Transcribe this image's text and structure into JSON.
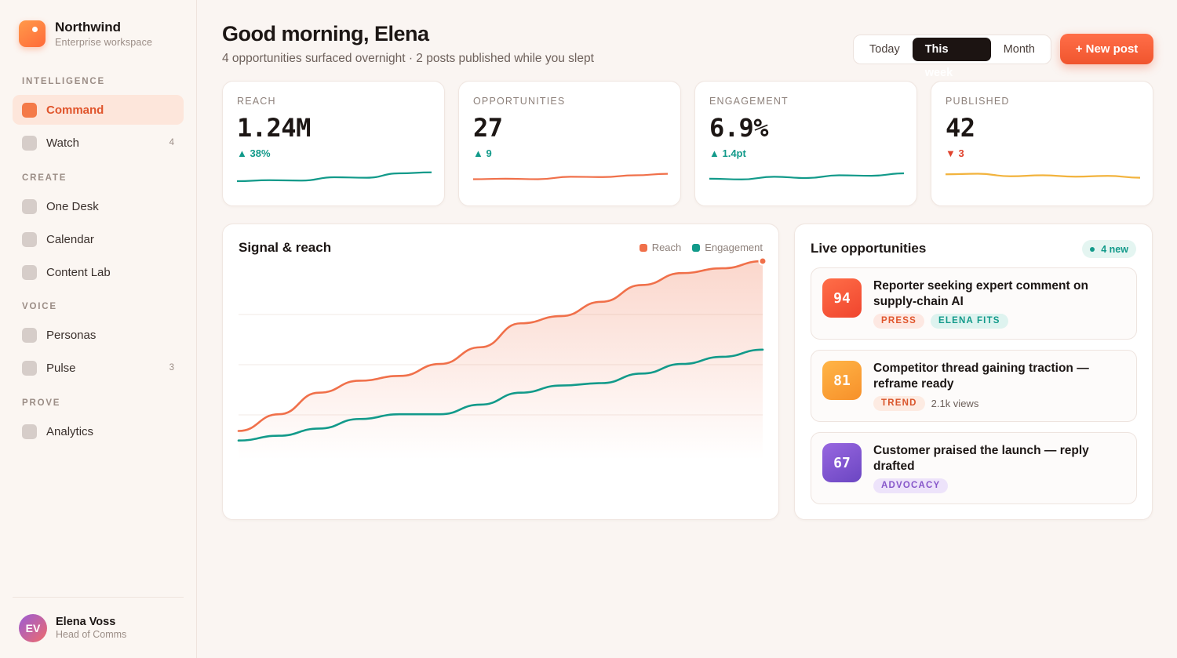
{
  "brand": {
    "name": "Northwind",
    "subtitle": "Enterprise workspace"
  },
  "sidebar": {
    "sections": [
      {
        "label": "INTELLIGENCE",
        "items": [
          {
            "label": "Command",
            "active": true
          },
          {
            "label": "Watch",
            "count": "4"
          }
        ]
      },
      {
        "label": "CREATE",
        "items": [
          {
            "label": "One Desk"
          },
          {
            "label": "Calendar"
          },
          {
            "label": "Content Lab"
          }
        ]
      },
      {
        "label": "VOICE",
        "items": [
          {
            "label": "Personas"
          },
          {
            "label": "Pulse",
            "count": "3"
          }
        ]
      },
      {
        "label": "PROVE",
        "items": [
          {
            "label": "Analytics"
          }
        ]
      }
    ]
  },
  "user": {
    "initials": "EV",
    "name": "Elena Voss",
    "role": "Head of Comms"
  },
  "header": {
    "title": "Good morning, Elena",
    "subtitle": "4 opportunities surfaced overnight · 2 posts published while you slept",
    "ranges": [
      "Today",
      "This week",
      "Month"
    ],
    "selected_range": "This week",
    "new_post_label": "+ New post"
  },
  "kpis": [
    {
      "label": "REACH",
      "value": "1.24M",
      "delta": "▲ 38%",
      "direction": "up",
      "color": "#129a8a",
      "trend": [
        4,
        5,
        4.6,
        8,
        7.5,
        12,
        13
      ]
    },
    {
      "label": "OPPORTUNITIES",
      "value": "27",
      "delta": "▲ 9",
      "direction": "up",
      "color": "#f0704a",
      "trend": [
        6,
        6.5,
        6,
        8.5,
        8.2,
        10,
        11.5
      ]
    },
    {
      "label": "ENGAGEMENT",
      "value": "6.9%",
      "delta": "▲ 1.4pt",
      "direction": "up",
      "color": "#129a8a",
      "trend": [
        6.5,
        5.8,
        8.5,
        7.2,
        10,
        9.5,
        12
      ]
    },
    {
      "label": "PUBLISHED",
      "value": "42",
      "delta": "▼ 3",
      "direction": "down",
      "color": "#f2b33d",
      "trend": [
        11,
        11.6,
        9,
        10,
        8.6,
        9.4,
        7.5
      ]
    }
  ],
  "signal_chart": {
    "title": "Signal & reach",
    "legend": [
      {
        "name": "Reach",
        "color": "#f0704a"
      },
      {
        "name": "Engagement",
        "color": "#129a8a"
      }
    ]
  },
  "chart_data": {
    "type": "area",
    "title": "Signal & reach",
    "ylim": [
      0,
      100
    ],
    "grid": true,
    "legend_position": "top-right",
    "series": [
      {
        "name": "Reach",
        "color": "#f0704a",
        "values": [
          30,
          37,
          46,
          51,
          53,
          58,
          65,
          75,
          78,
          84,
          91,
          96,
          98,
          101
        ]
      },
      {
        "name": "Engagement",
        "color": "#129a8a",
        "values": [
          26,
          28,
          31,
          35,
          37,
          37,
          41,
          46,
          49,
          50,
          54,
          58,
          61,
          64
        ]
      }
    ]
  },
  "opportunities": {
    "title": "Live opportunities",
    "badge": "4 new",
    "items": [
      {
        "score": "94",
        "color_from": "#ff6e48",
        "color_to": "#f0452e",
        "text": "Reporter seeking expert comment on supply-chain AI",
        "tags": [
          {
            "label": "PRESS",
            "kind": "press"
          },
          {
            "label": "ELENA FITS",
            "kind": "fits"
          }
        ],
        "note": ""
      },
      {
        "score": "81",
        "color_from": "#ffb547",
        "color_to": "#f7902a",
        "text": "Competitor thread gaining traction — reframe ready",
        "tags": [
          {
            "label": "TREND",
            "kind": "trend"
          }
        ],
        "note": "2.1k views"
      },
      {
        "score": "67",
        "color_from": "#9867e0",
        "color_to": "#6b46c2",
        "text": "Customer praised the launch — reply drafted",
        "tags": [
          {
            "label": "ADVOCACY",
            "kind": "adv"
          }
        ],
        "note": ""
      }
    ]
  }
}
